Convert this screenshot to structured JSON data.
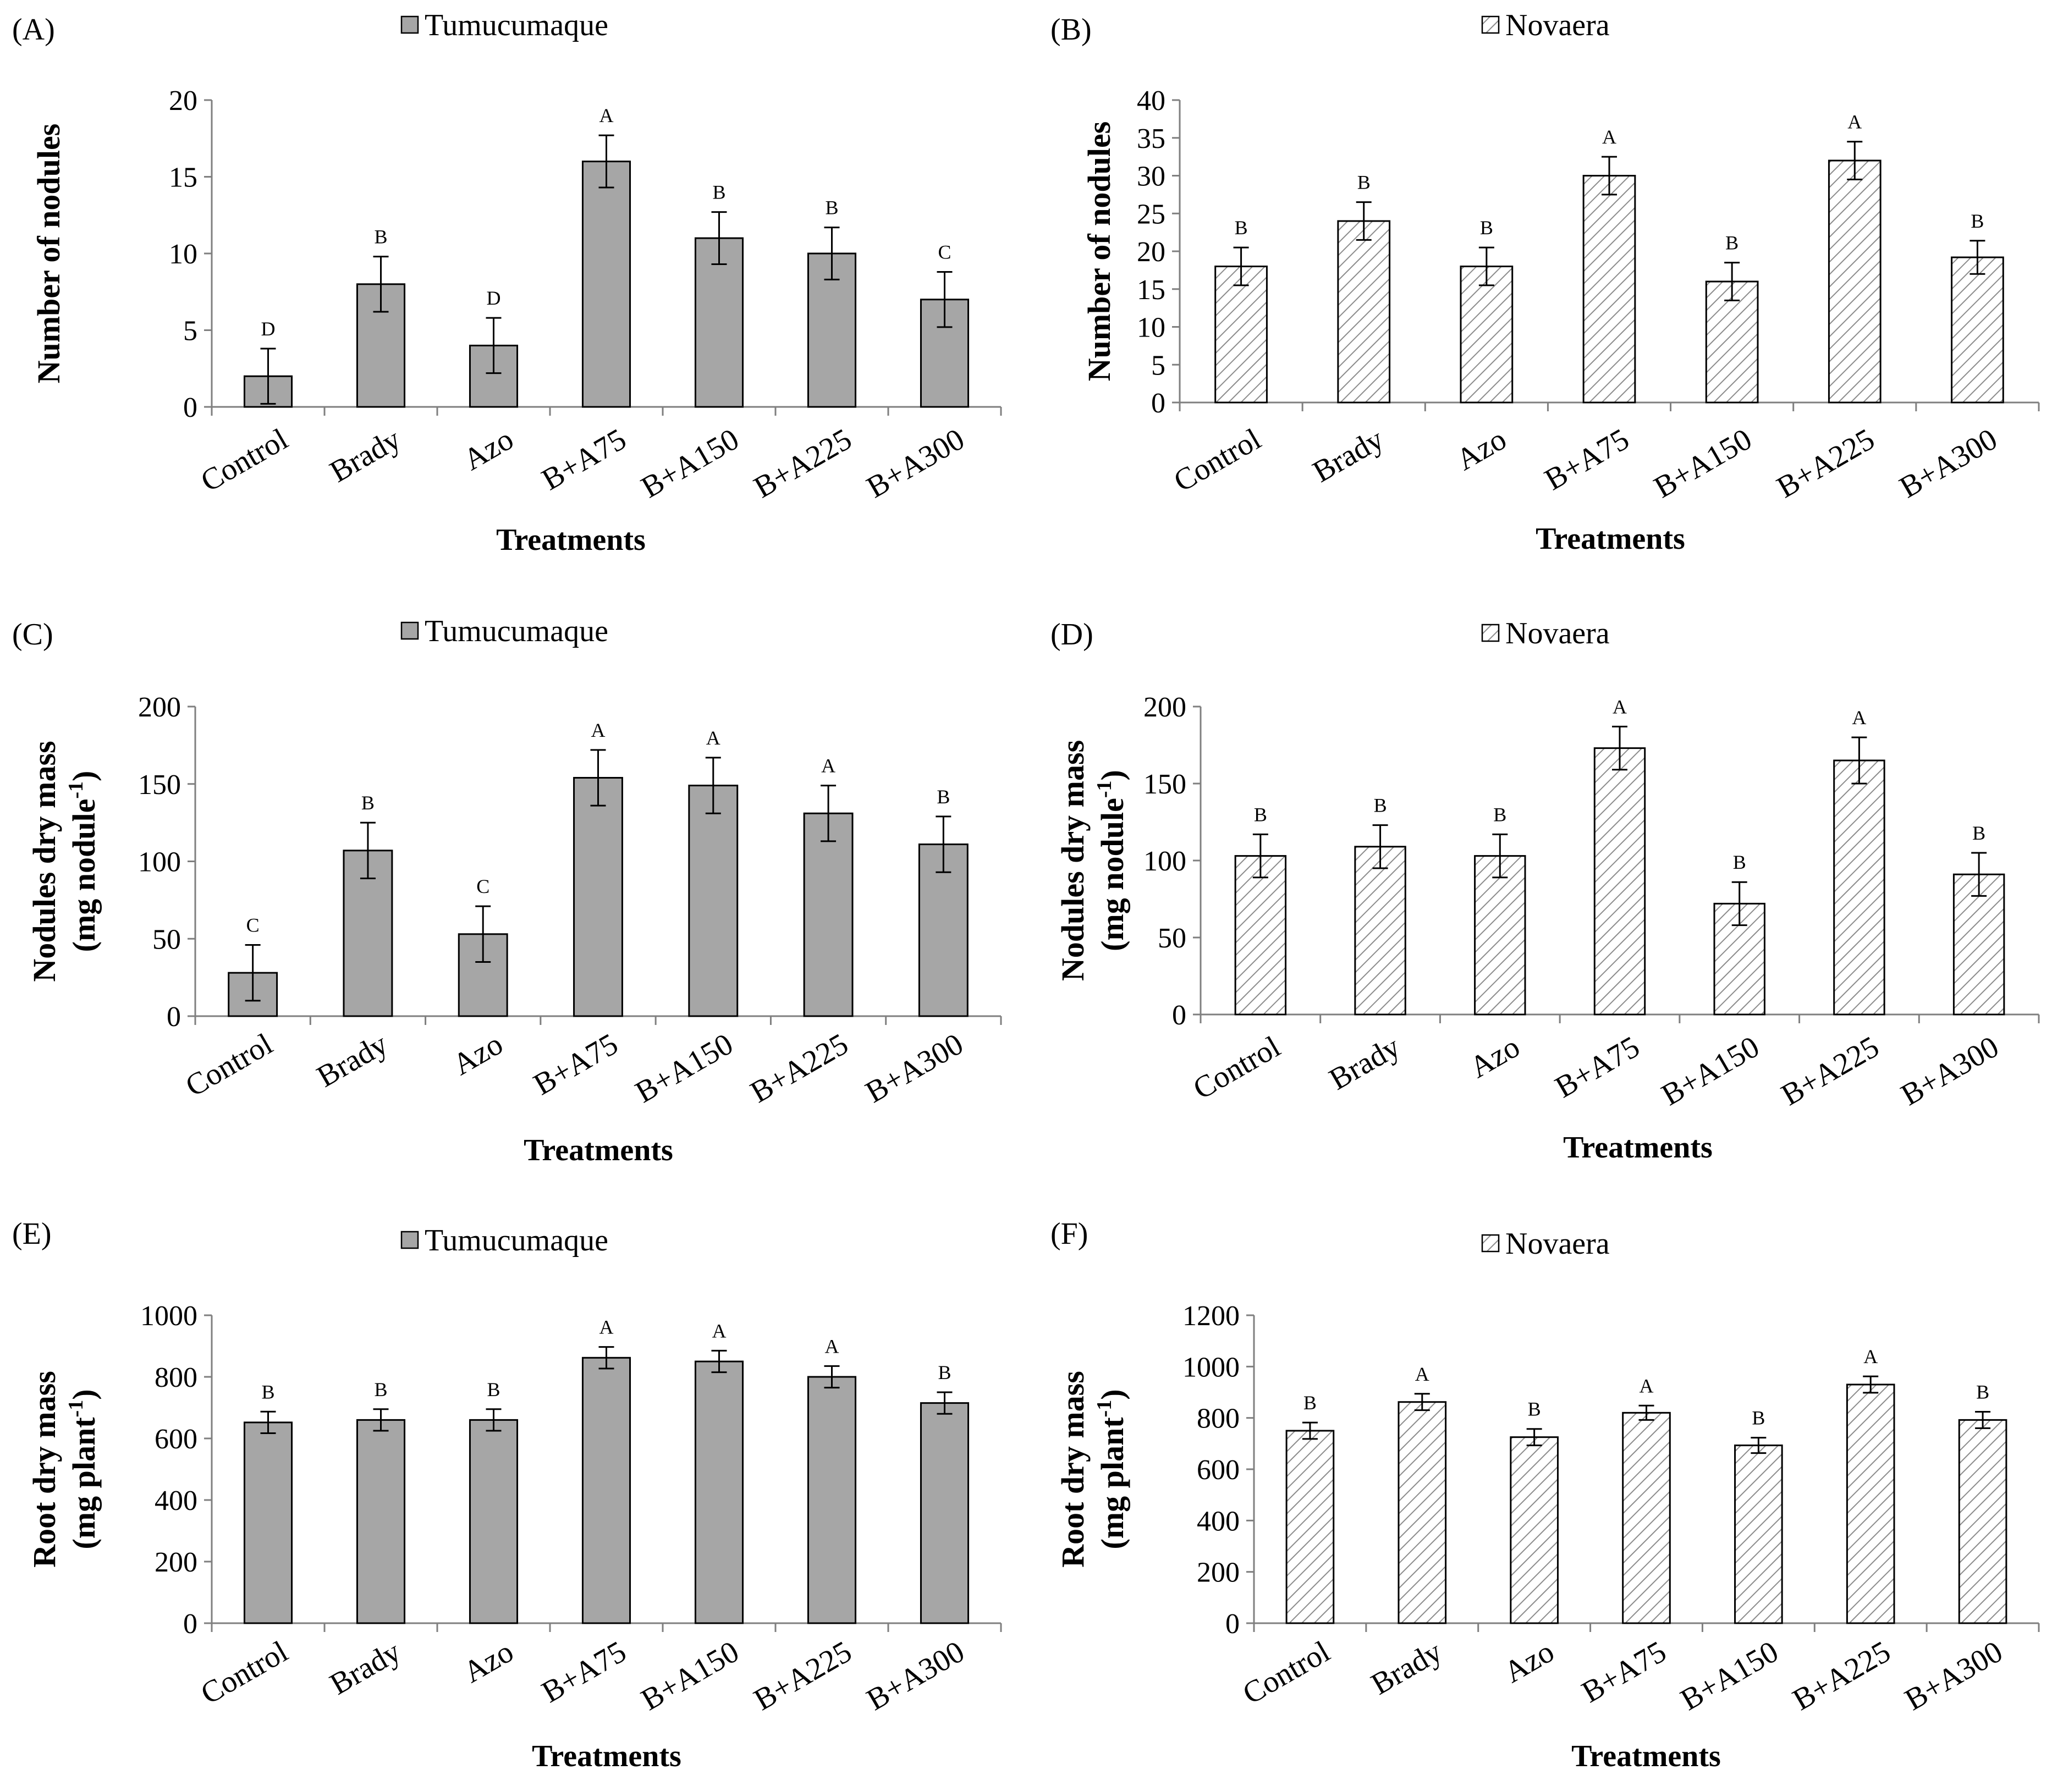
{
  "figure": {
    "treatments_label": "Treatments",
    "series_styles": {
      "Tumucumaque": {
        "fill": "#a6a6a6",
        "pattern": "solid"
      },
      "Novaera": {
        "fill": "#ffffff",
        "pattern": "hatch"
      }
    },
    "hatch_color": "#8c8c8c",
    "axis_color": "#7f7f7f"
  },
  "chart_data": [
    {
      "panel": "(A)",
      "type": "bar",
      "series_name": "Tumucumaque",
      "categories": [
        "Control",
        "Brady",
        "Azo",
        "B+A75",
        "B+A150",
        "B+A225",
        "B+A300"
      ],
      "values": [
        2,
        8,
        4,
        16,
        11,
        10,
        7
      ],
      "errors": [
        1.8,
        1.8,
        1.8,
        1.7,
        1.7,
        1.7,
        1.8
      ],
      "letters": [
        "D",
        "B",
        "D",
        "A",
        "B",
        "B",
        "C"
      ],
      "ylim": [
        0,
        20
      ],
      "yticks": [
        0,
        5,
        10,
        15,
        20
      ],
      "ylabel": [
        "Number of nodules"
      ],
      "xlabel": "Treatments",
      "legend": "top-center"
    },
    {
      "panel": "(B)",
      "type": "bar",
      "series_name": "Novaera",
      "categories": [
        "Control",
        "Brady",
        "Azo",
        "B+A75",
        "B+A150",
        "B+A225",
        "B+A300"
      ],
      "values": [
        18,
        24,
        18,
        30,
        16,
        32,
        19.2
      ],
      "errors": [
        2.5,
        2.5,
        2.5,
        2.5,
        2.5,
        2.5,
        2.2
      ],
      "letters": [
        "B",
        "B",
        "B",
        "A",
        "B",
        "A",
        "B"
      ],
      "ylim": [
        0,
        40
      ],
      "yticks": [
        0,
        5,
        10,
        15,
        20,
        25,
        30,
        35,
        40
      ],
      "ylabel": [
        "Number of nodules"
      ],
      "xlabel": "Treatments",
      "legend": "top-center"
    },
    {
      "panel": "(C)",
      "type": "bar",
      "series_name": "Tumucumaque",
      "categories": [
        "Control",
        "Brady",
        "Azo",
        "B+A75",
        "B+A150",
        "B+A225",
        "B+A300"
      ],
      "values": [
        28,
        107,
        53,
        154,
        149,
        131,
        111
      ],
      "errors": [
        18,
        18,
        18,
        18,
        18,
        18,
        18
      ],
      "letters": [
        "C",
        "B",
        "C",
        "A",
        "A",
        "A",
        "B"
      ],
      "ylim": [
        0,
        200
      ],
      "yticks": [
        0,
        50,
        100,
        150,
        200
      ],
      "ylabel": [
        "Nodules dry mass",
        "(mg nodule",
        "-1",
        ")"
      ],
      "xlabel": "Treatments",
      "legend": "top-center"
    },
    {
      "panel": "(D)",
      "type": "bar",
      "series_name": "Novaera",
      "categories": [
        "Control",
        "Brady",
        "Azo",
        "B+A75",
        "B+A150",
        "B+A225",
        "B+A300"
      ],
      "values": [
        103,
        109,
        103,
        173,
        72,
        165,
        91
      ],
      "errors": [
        14,
        14,
        14,
        14,
        14,
        15,
        14
      ],
      "letters": [
        "B",
        "B",
        "B",
        "A",
        "B",
        "A",
        "B"
      ],
      "ylim": [
        0,
        200
      ],
      "yticks": [
        0,
        50,
        100,
        150,
        200
      ],
      "ylabel": [
        "Nodules dry mass",
        "(mg nodule",
        "-1",
        ")"
      ],
      "xlabel": "Treatments",
      "legend": "top-center"
    },
    {
      "panel": "(E)",
      "type": "bar",
      "series_name": "Tumucumaque",
      "categories": [
        "Control",
        "Brady",
        "Azo",
        "B+A75",
        "B+A150",
        "B+A225",
        "B+A300"
      ],
      "values": [
        652,
        660,
        660,
        862,
        850,
        800,
        715
      ],
      "errors": [
        35,
        35,
        35,
        35,
        35,
        35,
        35
      ],
      "letters": [
        "B",
        "B",
        "B",
        "A",
        "A",
        "A",
        "B"
      ],
      "ylim": [
        0,
        1000
      ],
      "yticks": [
        0,
        200,
        400,
        600,
        800,
        1000
      ],
      "ylabel": [
        "Root dry mass",
        "(mg plant",
        "-1",
        ")"
      ],
      "xlabel": "Treatments",
      "legend": "top-center"
    },
    {
      "panel": "(F)",
      "type": "bar",
      "series_name": "Novaera",
      "categories": [
        "Control",
        "Brady",
        "Azo",
        "B+A75",
        "B+A150",
        "B+A225",
        "B+A300"
      ],
      "values": [
        750,
        862,
        725,
        820,
        693,
        930,
        792
      ],
      "errors": [
        32,
        32,
        32,
        28,
        30,
        32,
        32
      ],
      "letters": [
        "B",
        "A",
        "B",
        "A",
        "B",
        "A",
        "B"
      ],
      "ylim": [
        0,
        1200
      ],
      "yticks": [
        0,
        200,
        400,
        600,
        800,
        1000,
        1200
      ],
      "ylabel": [
        "Root dry mass",
        "(mg plant",
        "-1",
        ")"
      ],
      "xlabel": "Treatments",
      "legend": "top-center"
    }
  ]
}
